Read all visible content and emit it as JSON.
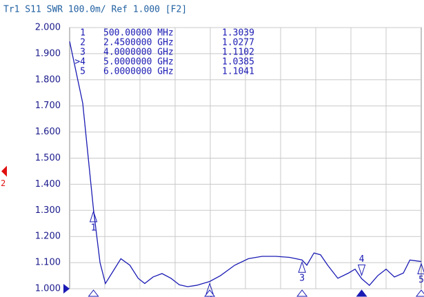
{
  "chart_data": {
    "type": "line",
    "title": "Tr1 S11 SWR 100.0m/ Ref 1.000 [F2]",
    "xlim": [
      0.1,
      6.0
    ],
    "ylim": [
      1.0,
      2.0
    ],
    "yticks": [
      {
        "value": 2.0,
        "label": "2.000"
      },
      {
        "value": 1.9,
        "label": "1.900"
      },
      {
        "value": 1.8,
        "label": "1.800"
      },
      {
        "value": 1.7,
        "label": "1.700"
      },
      {
        "value": 1.6,
        "label": "1.600"
      },
      {
        "value": 1.5,
        "label": "1.500"
      },
      {
        "value": 1.4,
        "label": "1.400"
      },
      {
        "value": 1.3,
        "label": "1.300"
      },
      {
        "value": 1.2,
        "label": "1.200"
      },
      {
        "value": 1.1,
        "label": "1.100"
      },
      {
        "value": 1.0,
        "label": "1.000"
      }
    ],
    "xgrid_count": 10,
    "grid": true,
    "series": [
      {
        "color": "#1a1ab4",
        "x": [
          0.1,
          0.32,
          0.5,
          0.61,
          0.7,
          0.81,
          0.96,
          1.11,
          1.25,
          1.36,
          1.5,
          1.65,
          1.8,
          1.94,
          2.08,
          2.23,
          2.45,
          2.63,
          2.87,
          3.1,
          3.33,
          3.56,
          3.79,
          4.0,
          4.08,
          4.2,
          4.31,
          4.43,
          4.6,
          4.78,
          4.89,
          5.0,
          5.13,
          5.27,
          5.41,
          5.55,
          5.7,
          5.81,
          6.0
        ],
        "values": [
          1.947,
          1.71,
          1.3039,
          1.1,
          1.02,
          1.06,
          1.115,
          1.09,
          1.04,
          1.02,
          1.045,
          1.058,
          1.04,
          1.015,
          1.008,
          1.013,
          1.0277,
          1.05,
          1.09,
          1.115,
          1.124,
          1.124,
          1.12,
          1.1102,
          1.09,
          1.137,
          1.13,
          1.09,
          1.04,
          1.06,
          1.075,
          1.0385,
          1.013,
          1.05,
          1.075,
          1.045,
          1.06,
          1.11,
          1.1041
        ]
      }
    ],
    "markers": [
      {
        "id": "1",
        "table_label": "1",
        "x": 0.5,
        "frequency": "500.00000 MHz",
        "value": 1.3039
      },
      {
        "id": "2",
        "table_label": "2",
        "x": 2.45,
        "frequency": "2.4500000 GHz",
        "value": 1.0277
      },
      {
        "id": "3",
        "table_label": "3",
        "x": 4.0,
        "frequency": "4.0000000 GHz",
        "value": 1.1102
      },
      {
        "id": "4",
        "table_label": ">4",
        "x": 5.0,
        "frequency": "5.0000000 GHz",
        "value": 1.0385,
        "active": true
      },
      {
        "id": "5",
        "table_label": "5",
        "x": 6.0,
        "frequency": "6.0000000 GHz",
        "value": 1.1041
      }
    ],
    "reference_marker": {
      "label": "2",
      "value": 1.45
    }
  }
}
